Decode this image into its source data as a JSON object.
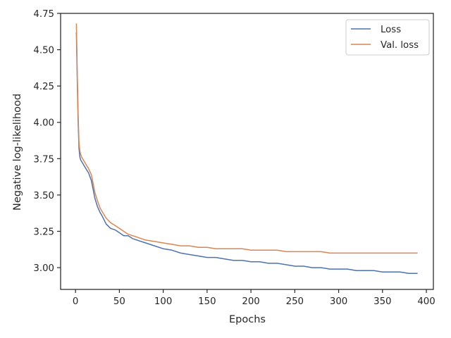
{
  "chart_data": {
    "type": "line",
    "title": "",
    "xlabel": "Epochs",
    "ylabel": "Negative log-likelihood",
    "xlim": [
      -17,
      408
    ],
    "ylim": [
      2.85,
      4.75
    ],
    "xticks": [
      0,
      50,
      100,
      150,
      200,
      250,
      300,
      350,
      400
    ],
    "yticks": [
      3.0,
      3.25,
      3.5,
      3.75,
      4.0,
      4.25,
      4.5,
      4.75
    ],
    "xtick_labels": [
      "0",
      "50",
      "100",
      "150",
      "200",
      "250",
      "300",
      "350",
      "400"
    ],
    "ytick_labels": [
      "3.00",
      "3.25",
      "3.50",
      "3.75",
      "4.00",
      "4.25",
      "4.50",
      "4.75"
    ],
    "grid": false,
    "legend": {
      "position": "top-right"
    },
    "series": [
      {
        "name": "Loss",
        "color": "#4c72b0",
        "x": [
          1,
          2,
          3,
          4,
          5,
          6,
          7,
          8,
          10,
          12,
          15,
          18,
          20,
          22,
          25,
          28,
          30,
          35,
          40,
          45,
          50,
          55,
          60,
          65,
          70,
          80,
          90,
          100,
          110,
          120,
          130,
          140,
          150,
          160,
          170,
          180,
          190,
          200,
          210,
          220,
          230,
          240,
          250,
          260,
          270,
          280,
          290,
          300,
          310,
          320,
          330,
          340,
          350,
          360,
          370,
          380,
          390
        ],
        "y": [
          4.62,
          4.3,
          4.0,
          3.82,
          3.76,
          3.74,
          3.73,
          3.72,
          3.7,
          3.68,
          3.65,
          3.6,
          3.54,
          3.48,
          3.42,
          3.38,
          3.36,
          3.3,
          3.27,
          3.26,
          3.24,
          3.22,
          3.22,
          3.2,
          3.19,
          3.17,
          3.15,
          3.13,
          3.12,
          3.1,
          3.09,
          3.08,
          3.07,
          3.07,
          3.06,
          3.05,
          3.05,
          3.04,
          3.04,
          3.03,
          3.03,
          3.02,
          3.01,
          3.01,
          3.0,
          3.0,
          2.99,
          2.99,
          2.99,
          2.98,
          2.98,
          2.98,
          2.97,
          2.97,
          2.97,
          2.96,
          2.96
        ]
      },
      {
        "name": "Val. loss",
        "color": "#dd8452",
        "x": [
          1,
          2,
          3,
          4,
          5,
          6,
          7,
          8,
          10,
          12,
          15,
          18,
          20,
          22,
          25,
          28,
          30,
          35,
          40,
          45,
          50,
          55,
          60,
          65,
          70,
          80,
          90,
          100,
          110,
          120,
          130,
          140,
          150,
          160,
          170,
          180,
          190,
          200,
          210,
          220,
          230,
          240,
          250,
          260,
          270,
          280,
          290,
          300,
          310,
          320,
          330,
          340,
          350,
          360,
          370,
          380,
          390
        ],
        "y": [
          4.68,
          4.35,
          4.05,
          3.86,
          3.8,
          3.78,
          3.76,
          3.75,
          3.73,
          3.71,
          3.68,
          3.64,
          3.58,
          3.52,
          3.46,
          3.41,
          3.39,
          3.34,
          3.31,
          3.29,
          3.27,
          3.25,
          3.23,
          3.22,
          3.21,
          3.19,
          3.18,
          3.17,
          3.16,
          3.15,
          3.15,
          3.14,
          3.14,
          3.13,
          3.13,
          3.13,
          3.13,
          3.12,
          3.12,
          3.12,
          3.12,
          3.11,
          3.11,
          3.11,
          3.11,
          3.11,
          3.1,
          3.1,
          3.1,
          3.1,
          3.1,
          3.1,
          3.1,
          3.1,
          3.1,
          3.1,
          3.1
        ]
      }
    ]
  }
}
